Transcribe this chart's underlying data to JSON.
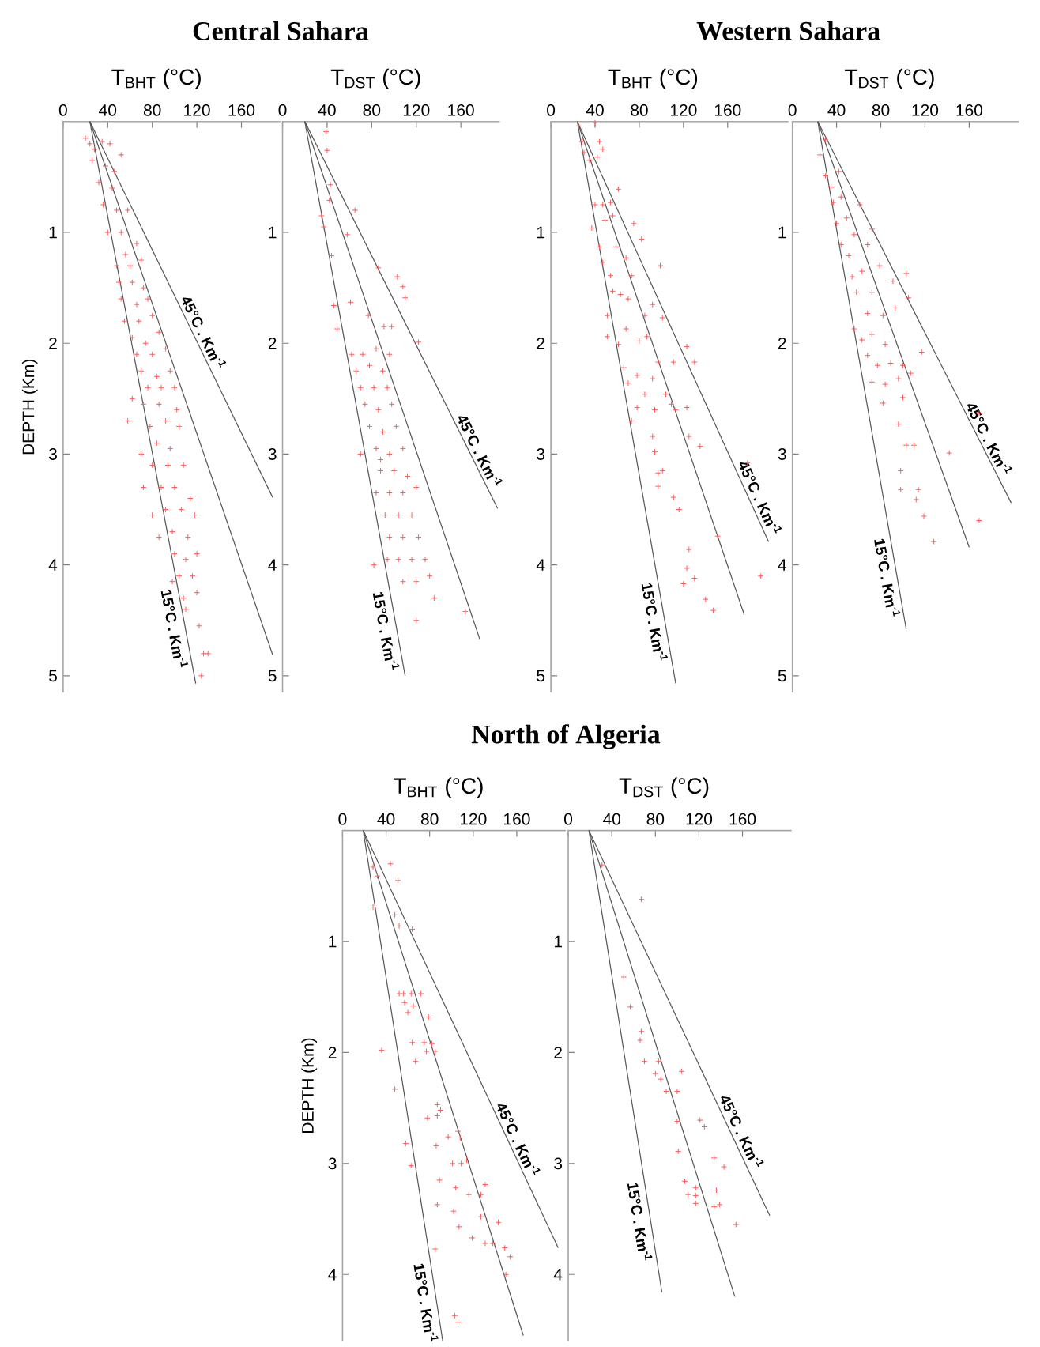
{
  "chart_data": [
    {
      "type": "scatter",
      "title": "Central Sahara",
      "xlabel": "T$_{BHT}$ (°C)",
      "ylabel": "DEPTH (Km)",
      "xlim": [
        0,
        195
      ],
      "ylim": [
        5.15,
        0
      ],
      "xticks": [
        0,
        40,
        80,
        120,
        160
      ],
      "yticks": [
        1,
        2,
        3,
        4,
        5
      ],
      "marker": "cross",
      "series": [
        {
          "color": "#ff5a5a",
          "x": [
            20,
            24,
            28,
            35,
            42,
            26,
            38,
            46,
            52,
            32,
            44,
            36,
            48,
            58,
            40,
            52,
            56,
            66,
            48,
            60,
            70,
            50,
            62,
            72,
            52,
            66,
            76,
            55,
            68,
            80,
            62,
            74,
            86,
            66,
            80,
            92,
            70,
            84,
            96,
            58,
            76,
            88,
            100,
            72,
            86,
            102,
            78,
            92,
            104,
            70,
            84,
            96,
            80,
            94,
            108,
            72,
            88,
            100,
            114,
            80,
            92,
            106,
            118,
            86,
            98,
            112,
            100,
            110,
            120,
            104,
            116,
            108,
            120,
            110,
            122,
            126,
            130,
            124,
            98,
            62
          ],
          "values": [
            0.15,
            0.2,
            0.25,
            0.18,
            0.2,
            0.35,
            0.4,
            0.45,
            0.3,
            0.55,
            0.6,
            0.75,
            0.8,
            0.8,
            1.0,
            1.0,
            1.2,
            1.1,
            1.3,
            1.3,
            1.25,
            1.45,
            1.45,
            1.5,
            1.6,
            1.65,
            1.6,
            1.8,
            1.8,
            1.75,
            1.95,
            2.0,
            1.9,
            2.1,
            2.1,
            2.05,
            2.25,
            2.3,
            2.25,
            2.7,
            2.4,
            2.4,
            2.4,
            2.55,
            2.55,
            2.6,
            2.75,
            2.7,
            2.75,
            3.0,
            2.9,
            2.95,
            3.1,
            3.1,
            3.1,
            3.3,
            3.3,
            3.3,
            3.4,
            3.55,
            3.5,
            3.5,
            3.55,
            3.75,
            3.7,
            3.75,
            3.9,
            3.95,
            3.9,
            4.1,
            4.1,
            4.3,
            4.25,
            4.4,
            4.55,
            4.8,
            4.8,
            5.0,
            4.15,
            2.5
          ]
        },
        {
          "type": "line",
          "color": "#555555",
          "marker": "none",
          "x": [
            24,
            119
          ],
          "values": [
            0,
            5.07
          ]
        },
        {
          "type": "line",
          "color": "#555555",
          "marker": "none",
          "x": [
            24,
            188
          ],
          "values": [
            0,
            4.81
          ]
        },
        {
          "type": "line",
          "color": "#555555",
          "marker": "none",
          "x": [
            24,
            188
          ],
          "values": [
            0,
            3.39
          ]
        }
      ],
      "annotations": [
        {
          "text": "45°C . Km$^{-1}$",
          "x": 118,
          "y": 1.94
        },
        {
          "text": "15°C . Km$^{-1}$",
          "x": 109,
          "y": 4.56
        }
      ]
    },
    {
      "type": "scatter",
      "xlabel": "T$_{DST}$ (°C)",
      "xlim": [
        0,
        195
      ],
      "ylim": [
        5.15,
        0
      ],
      "xticks": [
        0,
        40,
        80,
        120,
        160
      ],
      "yticks": [
        1,
        2,
        3,
        4,
        5
      ],
      "marker": "cross",
      "series": [
        {
          "color": "#ff5a5a",
          "x": [
            39,
            40,
            43,
            42,
            65,
            35,
            37,
            58,
            44,
            86,
            103,
            108,
            110,
            46,
            49,
            61,
            77,
            91,
            98,
            122,
            62,
            72,
            84,
            96,
            66,
            78,
            90,
            70,
            82,
            94,
            74,
            86,
            98,
            78,
            90,
            102,
            70,
            84,
            96,
            108,
            88,
            100,
            112,
            84,
            96,
            108,
            120,
            92,
            104,
            116,
            96,
            108,
            122,
            94,
            104,
            116,
            128,
            108,
            120,
            132,
            136,
            120,
            164,
            82,
            88
          ],
          "values": [
            0.09,
            0.26,
            0.57,
            0.71,
            0.8,
            0.85,
            0.95,
            1.02,
            1.21,
            1.32,
            1.4,
            1.49,
            1.59,
            1.66,
            1.87,
            1.63,
            1.75,
            1.85,
            1.85,
            1.99,
            2.1,
            2.1,
            2.05,
            2.1,
            2.25,
            2.2,
            2.25,
            2.4,
            2.4,
            2.4,
            2.55,
            2.6,
            2.55,
            2.75,
            2.8,
            2.75,
            3.0,
            2.95,
            3.0,
            2.95,
            3.15,
            3.15,
            3.2,
            3.35,
            3.35,
            3.35,
            3.3,
            3.55,
            3.55,
            3.55,
            3.75,
            3.75,
            3.75,
            3.95,
            3.95,
            3.95,
            3.95,
            4.15,
            4.15,
            4.1,
            4.3,
            4.5,
            4.42,
            4.0,
            3.05
          ]
        },
        {
          "type": "line",
          "color": "#555555",
          "marker": "none",
          "x": [
            20,
            110
          ],
          "values": [
            0,
            5.0
          ]
        },
        {
          "type": "line",
          "color": "#555555",
          "marker": "none",
          "x": [
            20,
            177
          ],
          "values": [
            0,
            4.67
          ]
        },
        {
          "type": "line",
          "color": "#555555",
          "marker": "none",
          "x": [
            20,
            193
          ],
          "values": [
            0,
            3.49
          ]
        }
      ],
      "annotations": [
        {
          "text": "45°C . Km$^{-1}$",
          "x": 169,
          "y": 3.01
        },
        {
          "text": "15°C . Km$^{-1}$",
          "x": 102,
          "y": 4.58
        }
      ]
    },
    {
      "type": "scatter",
      "title": "Western Sahara",
      "xlabel": "T$_{BHT}$ (°C)",
      "xlim": [
        0,
        215
      ],
      "ylim": [
        5.15,
        0
      ],
      "xticks": [
        0,
        40,
        80,
        120,
        160
      ],
      "yticks": [
        1,
        2,
        3,
        4,
        5
      ],
      "marker": "cross",
      "series": [
        {
          "color": "#ff5a5a",
          "x": [
            25,
            40,
            28,
            30,
            44,
            47,
            35,
            42,
            61,
            40,
            47,
            54,
            37,
            49,
            56,
            75,
            82,
            44,
            59,
            68,
            47,
            99,
            54,
            73,
            56,
            63,
            70,
            92,
            51,
            85,
            101,
            68,
            51,
            61,
            80,
            87,
            123,
            130,
            97,
            111,
            66,
            78,
            70,
            92,
            85,
            104,
            109,
            78,
            94,
            73,
            113,
            123,
            92,
            125,
            135,
            94,
            97,
            101,
            97,
            111,
            116,
            178,
            151,
            125,
            123,
            120,
            130,
            140,
            147,
            190
          ],
          "values": [
            0.04,
            0.01,
            0.18,
            0.28,
            0.18,
            0.25,
            0.35,
            0.32,
            0.61,
            0.75,
            0.75,
            0.73,
            0.96,
            0.89,
            0.85,
            0.92,
            1.06,
            1.13,
            1.13,
            1.23,
            1.27,
            1.3,
            1.39,
            1.39,
            1.53,
            1.56,
            1.6,
            1.65,
            1.75,
            1.75,
            1.77,
            1.87,
            1.94,
            2.01,
            1.98,
            1.94,
            2.03,
            2.17,
            2.17,
            2.17,
            2.22,
            2.29,
            2.36,
            2.32,
            2.46,
            2.46,
            2.55,
            2.58,
            2.6,
            2.7,
            2.6,
            2.58,
            2.84,
            2.84,
            2.93,
            2.98,
            3.17,
            3.15,
            3.29,
            3.39,
            3.5,
            3.08,
            3.74,
            3.86,
            4.03,
            4.17,
            4.12,
            4.31,
            4.41,
            4.1
          ]
        },
        {
          "type": "line",
          "color": "#555555",
          "marker": "none",
          "x": [
            24,
            113
          ],
          "values": [
            0,
            5.07
          ]
        },
        {
          "type": "line",
          "color": "#555555",
          "marker": "none",
          "x": [
            24,
            175
          ],
          "values": [
            0,
            4.45
          ]
        },
        {
          "type": "line",
          "color": "#555555",
          "marker": "none",
          "x": [
            24,
            197
          ],
          "values": [
            0,
            3.79
          ]
        }
      ],
      "annotations": [
        {
          "text": "45°C . Km$^{-1}$",
          "x": 181,
          "y": 3.43
        },
        {
          "text": "15°C . Km$^{-1}$",
          "x": 103,
          "y": 4.5
        }
      ]
    },
    {
      "type": "scatter",
      "xlabel": "T$_{DST}$ (°C)",
      "xlim": [
        0,
        205
      ],
      "ylim": [
        5.15,
        0
      ],
      "xticks": [
        0,
        40,
        80,
        120,
        160
      ],
      "yticks": [
        1,
        2,
        3,
        4,
        5
      ],
      "marker": "cross",
      "series": [
        {
          "color": "#ff5a5a",
          "x": [
            25,
            30,
            30,
            35,
            42,
            37,
            44,
            40,
            49,
            61,
            56,
            44,
            51,
            68,
            72,
            79,
            54,
            63,
            103,
            105,
            91,
            58,
            72,
            68,
            82,
            93,
            56,
            63,
            72,
            84,
            68,
            77,
            89,
            100,
            117,
            72,
            84,
            96,
            107,
            82,
            100,
            96,
            103,
            110,
            98,
            98,
            114,
            112,
            119,
            128,
            142,
            169,
            169
          ],
          "values": [
            0.3,
            0.16,
            0.49,
            0.59,
            0.45,
            0.73,
            0.68,
            0.92,
            0.87,
            0.75,
            1.02,
            1.11,
            1.21,
            1.11,
            0.97,
            1.3,
            1.4,
            1.35,
            1.37,
            1.59,
            1.44,
            1.54,
            1.54,
            1.73,
            1.75,
            1.68,
            1.87,
            1.97,
            1.92,
            2.01,
            2.11,
            2.2,
            2.18,
            2.2,
            2.08,
            2.35,
            2.37,
            2.32,
            2.27,
            2.54,
            2.49,
            2.73,
            2.92,
            2.92,
            3.15,
            3.32,
            3.32,
            3.41,
            3.56,
            3.79,
            2.99,
            2.63,
            3.6
          ]
        },
        {
          "type": "line",
          "color": "#555555",
          "marker": "none",
          "x": [
            23,
            103
          ],
          "values": [
            0,
            4.58
          ]
        },
        {
          "type": "line",
          "color": "#555555",
          "marker": "none",
          "x": [
            23,
            160
          ],
          "values": [
            0,
            3.84
          ]
        },
        {
          "type": "line",
          "color": "#555555",
          "marker": "none",
          "x": [
            23,
            198
          ],
          "values": [
            0,
            3.44
          ]
        }
      ],
      "annotations": [
        {
          "text": "45°C . Km$^{-1}$",
          "x": 170,
          "y": 2.9
        },
        {
          "text": "15°C . Km$^{-1}$",
          "x": 95,
          "y": 4.1
        }
      ]
    },
    {
      "type": "scatter",
      "title": "North of Algeria",
      "xlabel": "T$_{BHT}$ (°C)",
      "ylabel": "DEPTH (Km)",
      "xlim": [
        0,
        205
      ],
      "ylim": [
        4.6,
        0
      ],
      "xticks": [
        0,
        40,
        80,
        120,
        160
      ],
      "yticks": [
        1,
        2,
        3,
        4
      ],
      "marker": "cross",
      "series": [
        {
          "color": "#ff5a5a",
          "x": [
            28,
            44,
            32,
            51,
            28,
            48,
            52,
            64,
            52,
            56,
            63,
            72,
            57,
            65,
            60,
            79,
            64,
            75,
            82,
            85,
            77,
            67,
            36,
            48,
            87,
            90,
            78,
            87,
            58,
            63,
            86,
            97,
            106,
            108,
            101,
            109,
            114,
            89,
            104,
            116,
            131,
            127,
            87,
            102,
            127,
            143,
            107,
            119,
            131,
            138,
            85,
            149,
            154,
            150,
            103,
            106
          ],
          "values": [
            0.33,
            0.3,
            0.41,
            0.45,
            0.69,
            0.76,
            0.86,
            0.89,
            1.47,
            1.47,
            1.47,
            1.47,
            1.55,
            1.58,
            1.64,
            1.68,
            1.91,
            1.91,
            1.92,
            1.99,
            1.99,
            2.08,
            1.98,
            2.33,
            2.47,
            2.52,
            2.59,
            2.57,
            2.82,
            3.02,
            2.84,
            2.76,
            2.71,
            2.77,
            3.0,
            3.0,
            2.97,
            3.15,
            3.22,
            3.28,
            3.19,
            3.28,
            3.37,
            3.43,
            3.48,
            3.53,
            3.57,
            3.67,
            3.72,
            3.72,
            3.77,
            3.76,
            3.84,
            4.0,
            4.37,
            4.43
          ]
        },
        {
          "type": "line",
          "color": "#555555",
          "marker": "none",
          "x": [
            19,
            92
          ],
          "values": [
            0,
            4.6
          ]
        },
        {
          "type": "line",
          "color": "#555555",
          "marker": "none",
          "x": [
            19,
            166
          ],
          "values": [
            0,
            4.55
          ]
        },
        {
          "type": "line",
          "color": "#555555",
          "marker": "none",
          "x": [
            19,
            198
          ],
          "values": [
            0,
            3.76
          ]
        }
      ],
      "annotations": [
        {
          "text": "45°C . Km$^{-1}$",
          "x": 153,
          "y": 2.82
        },
        {
          "text": "15°C . Km$^{-1}$",
          "x": 86,
          "y": 4.24
        }
      ]
    },
    {
      "type": "scatter",
      "xlabel": "T$_{DST}$ (°C)",
      "xlim": [
        0,
        205
      ],
      "ylim": [
        4.6,
        0
      ],
      "xticks": [
        0,
        40,
        80,
        120,
        160
      ],
      "yticks": [
        1,
        2,
        3,
        4
      ],
      "marker": "cross",
      "series": [
        {
          "color": "#ff5a5a",
          "x": [
            31,
            67,
            51,
            57,
            67,
            66,
            70,
            83,
            80,
            85,
            90,
            104,
            100,
            100,
            121,
            125,
            101,
            134,
            143,
            107,
            117,
            110,
            117,
            117,
            136,
            134,
            139,
            154
          ],
          "values": [
            0.31,
            0.62,
            1.32,
            1.59,
            1.81,
            1.89,
            2.08,
            2.08,
            2.19,
            2.24,
            2.35,
            2.17,
            2.35,
            2.62,
            2.61,
            2.67,
            2.89,
            2.95,
            3.03,
            3.16,
            3.22,
            3.28,
            3.29,
            3.36,
            3.24,
            3.39,
            3.37,
            3.55
          ]
        },
        {
          "type": "line",
          "color": "#555555",
          "marker": "none",
          "x": [
            19,
            86
          ],
          "values": [
            0,
            4.16
          ]
        },
        {
          "type": "line",
          "color": "#555555",
          "marker": "none",
          "x": [
            19,
            153
          ],
          "values": [
            0,
            4.2
          ]
        },
        {
          "type": "line",
          "color": "#555555",
          "marker": "none",
          "x": [
            19,
            185
          ],
          "values": [
            0,
            3.47
          ]
        }
      ],
      "annotations": [
        {
          "text": "45°C . Km$^{-1}$",
          "x": 151,
          "y": 2.75
        },
        {
          "text": "15°C . Km$^{-1}$",
          "x": 75,
          "y": 3.51
        }
      ]
    }
  ]
}
